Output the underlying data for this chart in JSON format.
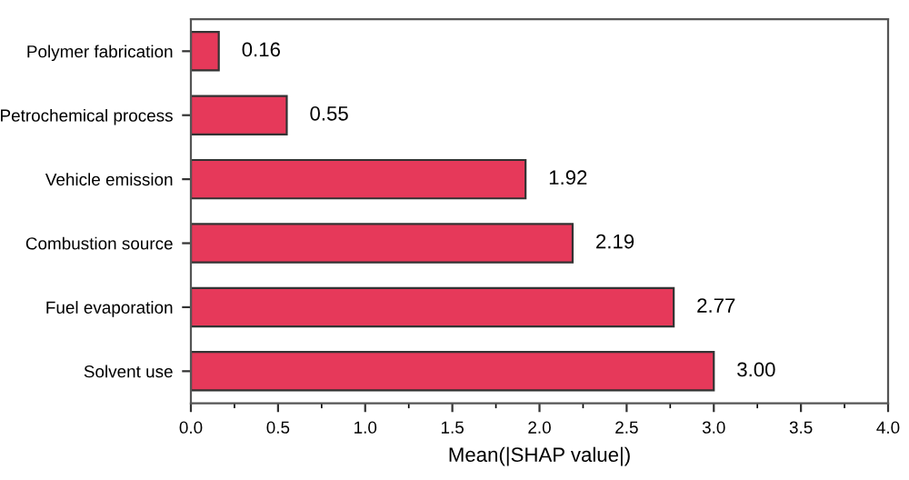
{
  "chart_data": {
    "type": "bar",
    "orientation": "horizontal",
    "xlabel": "Mean(|SHAP value|)",
    "categories": [
      "Polymer fabrication",
      "Petrochemical process",
      "Vehicle emission",
      "Combustion source",
      "Fuel evaporation",
      "Solvent use"
    ],
    "values": [
      0.16,
      0.55,
      1.92,
      2.19,
      2.77,
      3.0
    ],
    "value_labels": [
      "0.16",
      "0.55",
      "1.92",
      "2.19",
      "2.77",
      "3.00"
    ],
    "color": "#e6395a",
    "xlim": [
      0,
      4
    ],
    "xticks": [
      {
        "value": 0,
        "label": "0.0"
      },
      {
        "value": 0.5,
        "label": "0.5"
      },
      {
        "value": 1,
        "label": "1.0"
      },
      {
        "value": 1.5,
        "label": "1.5"
      },
      {
        "value": 2,
        "label": "2.0"
      },
      {
        "value": 2.5,
        "label": "2.5"
      },
      {
        "value": 3,
        "label": "3.0"
      },
      {
        "value": 3.5,
        "label": "3.5"
      },
      {
        "value": 4,
        "label": "4.0"
      }
    ],
    "grid": false
  }
}
